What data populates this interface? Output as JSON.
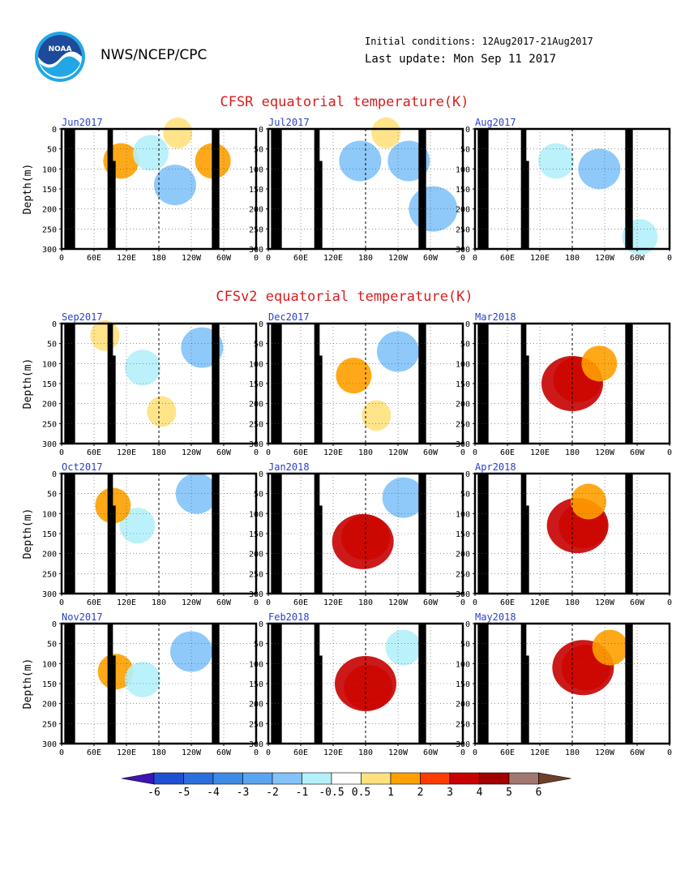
{
  "header": {
    "org": "NWS/NCEP/CPC",
    "logo_text": "NOAA",
    "initial_conditions": "Initial conditions: 12Aug2017-21Aug2017",
    "last_update": "Last update: Mon Sep 11 2017"
  },
  "sections": {
    "cfsr_title": "CFSR equatorial temperature(K)",
    "cfsv2_title": "CFSv2 equatorial temperature(K)"
  },
  "axes": {
    "ylabel": "Depth(m)",
    "yticks": [
      "0",
      "50",
      "100",
      "150",
      "200",
      "250",
      "300"
    ],
    "xticks": [
      "0",
      "60E",
      "120E",
      "180",
      "120W",
      "60W",
      "0"
    ]
  },
  "colorbar": {
    "labels": [
      "-6",
      "-5",
      "-4",
      "-3",
      "-2",
      "-1",
      "-0.5",
      "0.5",
      "1",
      "2",
      "3",
      "4",
      "5",
      "6"
    ],
    "colors": [
      "#3c14b4",
      "#1e50d2",
      "#2a6fdc",
      "#3c8ce6",
      "#5aa5f0",
      "#82c3fa",
      "#b4f0fa",
      "#ffffff",
      "#ffe17d",
      "#ffa000",
      "#ff3c00",
      "#c80000",
      "#a00000",
      "#a07870",
      "#6e4028"
    ]
  },
  "chart_data": [
    {
      "type": "heatmap",
      "title": "Jun2017",
      "source": "CFSR",
      "anomalies": [
        {
          "lon": 110,
          "depth": 80,
          "value": 1.0
        },
        {
          "lon": 210,
          "depth": 140,
          "value": -1.5
        },
        {
          "lon": 165,
          "depth": 60,
          "value": -1.0
        },
        {
          "lon": 280,
          "depth": 80,
          "value": 1.0
        },
        {
          "lon": 215,
          "depth": 10,
          "value": 0.5
        }
      ]
    },
    {
      "type": "heatmap",
      "title": "Jul2017",
      "source": "CFSR",
      "anomalies": [
        {
          "lon": 170,
          "depth": 80,
          "value": -1.5
        },
        {
          "lon": 260,
          "depth": 80,
          "value": -1.5
        },
        {
          "lon": 305,
          "depth": 200,
          "value": -2.0
        },
        {
          "lon": 218,
          "depth": 10,
          "value": 0.5
        }
      ]
    },
    {
      "type": "heatmap",
      "title": "Aug2017",
      "source": "CFSR",
      "anomalies": [
        {
          "lon": 230,
          "depth": 100,
          "value": -1.5
        },
        {
          "lon": 150,
          "depth": 80,
          "value": -1.0
        },
        {
          "lon": 305,
          "depth": 270,
          "value": -1.0
        }
      ]
    },
    {
      "type": "heatmap",
      "title": "Sep2017",
      "source": "CFSv2",
      "anomalies": [
        {
          "lon": 260,
          "depth": 60,
          "value": -1.5
        },
        {
          "lon": 150,
          "depth": 110,
          "value": -1.0
        },
        {
          "lon": 185,
          "depth": 220,
          "value": 0.5
        },
        {
          "lon": 80,
          "depth": 30,
          "value": 0.5
        }
      ]
    },
    {
      "type": "heatmap",
      "title": "Dec2017",
      "source": "CFSv2",
      "anomalies": [
        {
          "lon": 240,
          "depth": 70,
          "value": -1.5
        },
        {
          "lon": 158,
          "depth": 130,
          "value": 1.0
        },
        {
          "lon": 200,
          "depth": 230,
          "value": 0.5
        }
      ]
    },
    {
      "type": "heatmap",
      "title": "Mar2018",
      "source": "CFSv2",
      "anomalies": [
        {
          "lon": 190,
          "depth": 140,
          "value": 2.0
        },
        {
          "lon": 180,
          "depth": 150,
          "value": 3.0
        },
        {
          "lon": 230,
          "depth": 100,
          "value": 1.0
        }
      ]
    },
    {
      "type": "heatmap",
      "title": "Oct2017",
      "source": "CFSv2",
      "anomalies": [
        {
          "lon": 250,
          "depth": 50,
          "value": -1.5
        },
        {
          "lon": 140,
          "depth": 130,
          "value": -1.0
        },
        {
          "lon": 95,
          "depth": 80,
          "value": 1.0
        }
      ]
    },
    {
      "type": "heatmap",
      "title": "Jan2018",
      "source": "CFSv2",
      "anomalies": [
        {
          "lon": 250,
          "depth": 60,
          "value": -1.5
        },
        {
          "lon": 180,
          "depth": 160,
          "value": 2.0
        },
        {
          "lon": 175,
          "depth": 170,
          "value": 3.0
        }
      ]
    },
    {
      "type": "heatmap",
      "title": "Apr2018",
      "source": "CFSv2",
      "anomalies": [
        {
          "lon": 200,
          "depth": 130,
          "value": 2.0
        },
        {
          "lon": 190,
          "depth": 130,
          "value": 3.0
        },
        {
          "lon": 210,
          "depth": 70,
          "value": 1.0
        }
      ]
    },
    {
      "type": "heatmap",
      "title": "Nov2017",
      "source": "CFSv2",
      "anomalies": [
        {
          "lon": 240,
          "depth": 70,
          "value": -1.5
        },
        {
          "lon": 100,
          "depth": 120,
          "value": 1.0
        },
        {
          "lon": 150,
          "depth": 140,
          "value": -1.0
        }
      ]
    },
    {
      "type": "heatmap",
      "title": "Feb2018",
      "source": "CFSv2",
      "anomalies": [
        {
          "lon": 185,
          "depth": 160,
          "value": 2.0
        },
        {
          "lon": 180,
          "depth": 150,
          "value": 3.0
        },
        {
          "lon": 250,
          "depth": 60,
          "value": -1.0
        }
      ]
    },
    {
      "type": "heatmap",
      "title": "May2018",
      "source": "CFSv2",
      "anomalies": [
        {
          "lon": 205,
          "depth": 110,
          "value": 2.0
        },
        {
          "lon": 200,
          "depth": 110,
          "value": 3.0
        },
        {
          "lon": 250,
          "depth": 60,
          "value": 1.0
        }
      ]
    }
  ]
}
